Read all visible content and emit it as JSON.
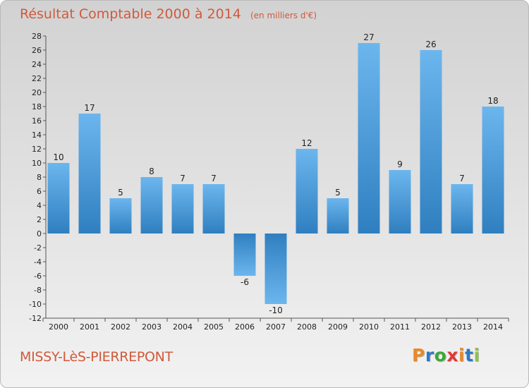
{
  "header": {
    "title": "Résultat Comptable 2000 à 2014",
    "subtitle": "(en milliers d'€)"
  },
  "footer": {
    "town": "MISSY-LèS-PIERREPONT",
    "logo_letters": [
      "P",
      "r",
      "o",
      "x",
      "i",
      "t",
      "i"
    ],
    "logo_colors": [
      "#e8892a",
      "#2f78c4",
      "#3aa83a",
      "#e03a3a",
      "#e8892a",
      "#2f78c4",
      "#8cc63f"
    ]
  },
  "colors": {
    "bar_light": "#6cb6ee",
    "bar_dark": "#2f7fc0",
    "text": "#222222",
    "title": "#d05a3c"
  },
  "chart_data": {
    "type": "bar",
    "categories": [
      "2000",
      "2001",
      "2002",
      "2003",
      "2004",
      "2005",
      "2006",
      "2007",
      "2008",
      "2009",
      "2010",
      "2011",
      "2012",
      "2013",
      "2014"
    ],
    "values": [
      10,
      17,
      5,
      8,
      7,
      7,
      -6,
      -10,
      12,
      5,
      27,
      9,
      26,
      7,
      18
    ],
    "title": "Résultat Comptable 2000 à 2014",
    "subtitle": "(en milliers d'€)",
    "xlabel": "",
    "ylabel": "",
    "ylim": [
      -12,
      28
    ],
    "yticks": [
      28,
      26,
      24,
      22,
      20,
      18,
      16,
      14,
      12,
      10,
      8,
      6,
      4,
      2,
      0,
      -2,
      -4,
      -6,
      -8,
      -10,
      -12
    ],
    "grid": false,
    "legend": "none"
  }
}
